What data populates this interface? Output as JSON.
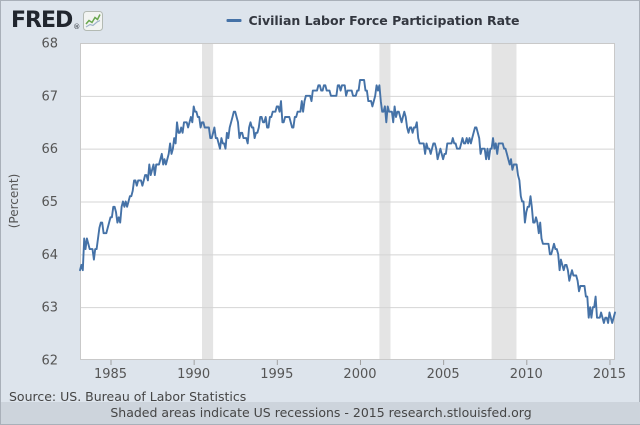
{
  "header": {
    "logo_text": "FRED",
    "legend": {
      "series_label": "Civilian Labor Force Participation Rate"
    }
  },
  "footer": {
    "source": "Source: US. Bureau of Labor Statistics",
    "note": "Shaded areas indicate US recessions - 2015 research.stlouisfed.org"
  },
  "colors": {
    "background": "#dde4ec",
    "plot_background": "#ffffff",
    "line": "#4572a7",
    "gridline": "#d4d4d4",
    "plot_border": "#c9c9c9",
    "recession_band": "#e4e4e4",
    "tick_mark": "#a0a0a0",
    "tick_label": "#555555",
    "footer_strip": "#cdd4dc",
    "logo_green": "#69a74e",
    "logo_gray_line": "#9fb3c8"
  },
  "chart_data": {
    "type": "line",
    "title": "Civilian Labor Force Participation Rate",
    "xlabel": "",
    "ylabel": "(Percent)",
    "xlim": [
      1983.1667,
      2015.3333
    ],
    "ylim": [
      62,
      68
    ],
    "x_ticks": [
      1985,
      1990,
      1995,
      2000,
      2005,
      2010,
      2015
    ],
    "y_ticks": [
      62,
      63,
      64,
      65,
      66,
      67,
      68
    ],
    "grid": "horizontal",
    "legend_position": "top-center",
    "recession_bands": [
      [
        1990.5,
        1991.1667
      ],
      [
        2001.1667,
        2001.8333
      ],
      [
        2007.9167,
        2009.4167
      ]
    ],
    "series": [
      {
        "name": "Civilian Labor Force Participation Rate",
        "frequency": "monthly",
        "start_year": 1983,
        "start_month": 3,
        "end_label": "2015-05",
        "values": [
          63.7,
          63.8,
          63.7,
          64.3,
          64.1,
          64.3,
          64.2,
          64.1,
          64.1,
          64.1,
          63.9,
          64.1,
          64.1,
          64.3,
          64.5,
          64.6,
          64.6,
          64.4,
          64.4,
          64.4,
          64.5,
          64.6,
          64.7,
          64.7,
          64.9,
          64.9,
          64.8,
          64.6,
          64.7,
          64.6,
          64.9,
          65.0,
          64.9,
          65.0,
          64.9,
          65.0,
          65.1,
          65.1,
          65.2,
          65.4,
          65.4,
          65.3,
          65.4,
          65.4,
          65.4,
          65.3,
          65.4,
          65.5,
          65.5,
          65.4,
          65.7,
          65.5,
          65.6,
          65.7,
          65.5,
          65.7,
          65.7,
          65.7,
          65.8,
          65.9,
          65.7,
          65.8,
          65.7,
          65.8,
          65.9,
          66.1,
          65.9,
          66.0,
          66.2,
          66.1,
          66.5,
          66.3,
          66.3,
          66.4,
          66.3,
          66.5,
          66.5,
          66.5,
          66.4,
          66.5,
          66.6,
          66.5,
          66.8,
          66.7,
          66.7,
          66.6,
          66.6,
          66.4,
          66.5,
          66.5,
          66.4,
          66.4,
          66.4,
          66.4,
          66.2,
          66.2,
          66.3,
          66.4,
          66.2,
          66.2,
          66.1,
          66.0,
          66.2,
          66.1,
          66.1,
          66.0,
          66.3,
          66.2,
          66.4,
          66.5,
          66.6,
          66.7,
          66.7,
          66.6,
          66.5,
          66.2,
          66.3,
          66.3,
          66.2,
          66.2,
          66.2,
          66.1,
          66.4,
          66.5,
          66.4,
          66.4,
          66.2,
          66.3,
          66.3,
          66.4,
          66.6,
          66.6,
          66.5,
          66.5,
          66.6,
          66.4,
          66.4,
          66.6,
          66.6,
          66.7,
          66.7,
          66.7,
          66.8,
          66.8,
          66.7,
          66.9,
          66.5,
          66.5,
          66.6,
          66.6,
          66.6,
          66.6,
          66.5,
          66.4,
          66.4,
          66.6,
          66.6,
          66.7,
          66.7,
          66.7,
          66.9,
          66.7,
          66.9,
          67.0,
          67.0,
          67.0,
          67.0,
          66.9,
          67.1,
          67.1,
          67.1,
          67.1,
          67.2,
          67.2,
          67.1,
          67.1,
          67.2,
          67.2,
          67.1,
          67.1,
          67.1,
          67.0,
          67.0,
          67.0,
          67.0,
          67.0,
          67.2,
          67.2,
          67.1,
          67.2,
          67.2,
          67.2,
          67.0,
          67.1,
          67.1,
          67.1,
          67.1,
          67.0,
          67.0,
          67.0,
          67.1,
          67.1,
          67.3,
          67.3,
          67.3,
          67.3,
          67.1,
          67.1,
          66.9,
          66.9,
          66.9,
          66.8,
          66.9,
          67.0,
          67.2,
          67.1,
          67.2,
          66.9,
          66.7,
          66.7,
          66.8,
          66.5,
          66.8,
          66.7,
          66.7,
          66.7,
          66.5,
          66.8,
          66.6,
          66.7,
          66.7,
          66.6,
          66.5,
          66.6,
          66.7,
          66.6,
          66.4,
          66.3,
          66.4,
          66.4,
          66.3,
          66.4,
          66.4,
          66.5,
          66.2,
          66.1,
          66.1,
          66.1,
          66.1,
          65.9,
          66.1,
          66.0,
          66.0,
          65.9,
          66.0,
          66.1,
          66.1,
          66.0,
          65.8,
          65.9,
          66.0,
          65.9,
          65.8,
          65.9,
          65.9,
          66.1,
          66.1,
          66.1,
          66.1,
          66.2,
          66.1,
          66.1,
          66.0,
          66.0,
          66.0,
          66.1,
          66.2,
          66.1,
          66.1,
          66.2,
          66.1,
          66.2,
          66.1,
          66.2,
          66.3,
          66.4,
          66.4,
          66.3,
          66.2,
          65.9,
          66.0,
          66.0,
          66.0,
          65.8,
          66.0,
          65.8,
          66.0,
          66.0,
          66.2,
          66.0,
          66.1,
          65.9,
          66.1,
          66.1,
          66.1,
          66.1,
          66.0,
          66.0,
          65.9,
          65.8,
          65.7,
          65.8,
          65.6,
          65.7,
          65.7,
          65.7,
          65.5,
          65.4,
          65.1,
          65.0,
          65.0,
          64.6,
          64.8,
          64.9,
          64.9,
          65.1,
          64.9,
          64.6,
          64.6,
          64.7,
          64.6,
          64.4,
          64.6,
          64.3,
          64.2,
          64.2,
          64.2,
          64.2,
          64.2,
          64.0,
          64.0,
          64.1,
          64.2,
          64.1,
          64.1,
          64.0,
          63.7,
          63.9,
          63.8,
          63.7,
          63.8,
          63.8,
          63.7,
          63.5,
          63.6,
          63.7,
          63.6,
          63.6,
          63.6,
          63.5,
          63.3,
          63.4,
          63.4,
          63.4,
          63.4,
          63.2,
          63.2,
          62.8,
          63.0,
          62.8,
          63.0,
          63.0,
          63.2,
          62.8,
          62.8,
          62.8,
          62.9,
          62.8,
          62.7,
          62.8,
          62.8,
          62.7,
          62.9,
          62.8,
          62.7,
          62.8,
          62.9
        ]
      }
    ]
  }
}
